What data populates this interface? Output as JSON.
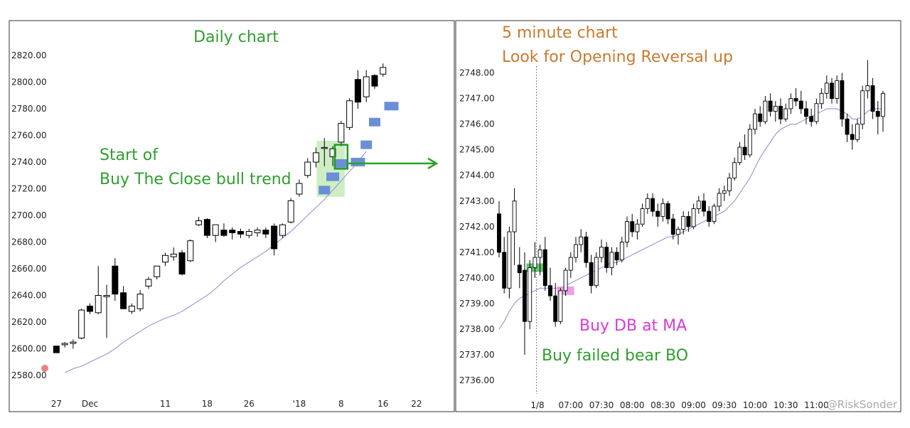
{
  "colors": {
    "annotation_green": "#2e9e2e",
    "annotation_orange": "#c87a2e",
    "annotation_magenta": "#d83ad8",
    "highlight_green": "#cdeec3",
    "highlight_box": "#1f9a1f",
    "marker_blue": "#6a8fd8",
    "marker_green": "#4dbb5a",
    "marker_pink": "#e98ee0",
    "ma_line": "#9b9bd8",
    "arrow": "#2aa02a",
    "red_dot": "#e05a5a"
  },
  "watermark": "@RiskSonder",
  "chart_data": [
    {
      "type": "candlestick",
      "annotations": {
        "title": "Daily chart",
        "line1": "Start of",
        "line2": "Buy The Close bull trend"
      },
      "ylim": [
        2572,
        2830
      ],
      "y_ticks": [
        "2580.00",
        "2600.00",
        "2620.00",
        "2640.00",
        "2660.00",
        "2680.00",
        "2700.00",
        "2720.00",
        "2740.00",
        "2760.00",
        "2780.00",
        "2800.00",
        "2820.00"
      ],
      "y_tick_values": [
        2580,
        2600,
        2620,
        2640,
        2660,
        2680,
        2700,
        2720,
        2740,
        2760,
        2780,
        2800,
        2820
      ],
      "x_ticks": [
        {
          "index": 3,
          "label": "27"
        },
        {
          "index": 7,
          "label": "Dec"
        },
        {
          "index": 16,
          "label": "11"
        },
        {
          "index": 21,
          "label": "18"
        },
        {
          "index": 26,
          "label": "26"
        },
        {
          "index": 32,
          "label": "'18"
        },
        {
          "index": 37,
          "label": "8"
        },
        {
          "index": 42,
          "label": "16"
        },
        {
          "index": 46,
          "label": "22"
        }
      ],
      "candles": [
        {
          "o": 2602,
          "h": 2602,
          "l": 2597,
          "c": 2597
        },
        {
          "o": 2603,
          "h": 2605,
          "l": 2601,
          "c": 2604
        },
        {
          "o": 2604,
          "h": 2607,
          "l": 2600,
          "c": 2605
        },
        {
          "o": 2608,
          "h": 2630,
          "l": 2607,
          "c": 2629
        },
        {
          "o": 2632,
          "h": 2634,
          "l": 2626,
          "c": 2628
        },
        {
          "o": 2627,
          "h": 2662,
          "l": 2626,
          "c": 2640
        },
        {
          "o": 2639,
          "h": 2648,
          "l": 2608,
          "c": 2640
        },
        {
          "o": 2662,
          "h": 2668,
          "l": 2636,
          "c": 2641
        },
        {
          "o": 2642,
          "h": 2647,
          "l": 2630,
          "c": 2630
        },
        {
          "o": 2628,
          "h": 2634,
          "l": 2626,
          "c": 2632
        },
        {
          "o": 2630,
          "h": 2644,
          "l": 2628,
          "c": 2641
        },
        {
          "o": 2647,
          "h": 2654,
          "l": 2645,
          "c": 2652
        },
        {
          "o": 2654,
          "h": 2662,
          "l": 2652,
          "c": 2662
        },
        {
          "o": 2665,
          "h": 2672,
          "l": 2662,
          "c": 2670
        },
        {
          "o": 2669,
          "h": 2676,
          "l": 2666,
          "c": 2671
        },
        {
          "o": 2672,
          "h": 2674,
          "l": 2655,
          "c": 2656
        },
        {
          "o": 2666,
          "h": 2682,
          "l": 2665,
          "c": 2681
        },
        {
          "o": 2693,
          "h": 2699,
          "l": 2692,
          "c": 2696
        },
        {
          "o": 2697,
          "h": 2698,
          "l": 2683,
          "c": 2685
        },
        {
          "o": 2685,
          "h": 2693,
          "l": 2680,
          "c": 2693
        },
        {
          "o": 2689,
          "h": 2694,
          "l": 2684,
          "c": 2685
        },
        {
          "o": 2689,
          "h": 2691,
          "l": 2682,
          "c": 2687
        },
        {
          "o": 2688,
          "h": 2690,
          "l": 2683,
          "c": 2686
        },
        {
          "o": 2685,
          "h": 2690,
          "l": 2683,
          "c": 2688
        },
        {
          "o": 2687,
          "h": 2691,
          "l": 2684,
          "c": 2689
        },
        {
          "o": 2689,
          "h": 2691,
          "l": 2683,
          "c": 2686
        },
        {
          "o": 2692,
          "h": 2694,
          "l": 2670,
          "c": 2675
        },
        {
          "o": 2685,
          "h": 2694,
          "l": 2683,
          "c": 2693
        },
        {
          "o": 2695,
          "h": 2713,
          "l": 2694,
          "c": 2711
        },
        {
          "o": 2716,
          "h": 2727,
          "l": 2714,
          "c": 2724
        },
        {
          "o": 2730,
          "h": 2743,
          "l": 2728,
          "c": 2740
        },
        {
          "o": 2740,
          "h": 2751,
          "l": 2736,
          "c": 2747
        },
        {
          "o": 2751,
          "h": 2758,
          "l": 2737,
          "c": 2751
        },
        {
          "o": 2744,
          "h": 2752,
          "l": 2737,
          "c": 2750
        },
        {
          "o": 2755,
          "h": 2771,
          "l": 2752,
          "c": 2769
        },
        {
          "o": 2766,
          "h": 2788,
          "l": 2764,
          "c": 2786
        },
        {
          "o": 2802,
          "h": 2809,
          "l": 2780,
          "c": 2785
        },
        {
          "o": 2789,
          "h": 2809,
          "l": 2785,
          "c": 2804
        },
        {
          "o": 2805,
          "h": 2806,
          "l": 2795,
          "c": 2797
        },
        {
          "o": 2806,
          "h": 2814,
          "l": 2804,
          "c": 2811
        }
      ],
      "candle_index_offset": 3,
      "ma": [
        2582,
        2585,
        2587,
        2590,
        2593,
        2596,
        2600,
        2605,
        2609,
        2613,
        2617,
        2620,
        2623,
        2625,
        2628,
        2632,
        2636,
        2640,
        2645,
        2651,
        2656,
        2661,
        2665,
        2669,
        2673,
        2678,
        2683,
        2688,
        2694,
        2700,
        2706,
        2712,
        2719,
        2726,
        2733,
        2740,
        2748
      ],
      "ma_index_offset": 4,
      "markers": [
        {
          "index": 35,
          "y": 2719,
          "size": "s"
        },
        {
          "index": 36,
          "y": 2729,
          "size": "m"
        },
        {
          "index": 37,
          "y": 2739,
          "size": "m"
        },
        {
          "index": 39,
          "y": 2740,
          "size": "l"
        },
        {
          "index": 40,
          "y": 2753,
          "size": "s"
        },
        {
          "index": 41,
          "y": 2770,
          "size": "s"
        },
        {
          "index": 43,
          "y": 2782,
          "size": "l"
        }
      ],
      "highlight": {
        "x_from": 34,
        "x_to": 37,
        "y_from": 2714,
        "y_to": 2756
      },
      "box": {
        "index": 37,
        "y_from": 2735,
        "y_to": 2753
      },
      "arrow": {
        "y": 2739
      }
    },
    {
      "type": "candlestick",
      "annotations": {
        "title_line1": "5 minute chart",
        "title_line2": "Look for Opening Reversal up",
        "label_db": "Buy DB at MA",
        "label_bo": "Buy failed bear BO"
      },
      "ylim": [
        2735.5,
        2748.75
      ],
      "y_ticks": [
        "2737.00",
        "2738.00",
        "2739.00",
        "2740.00",
        "2741.00",
        "2742.00",
        "2743.00",
        "2744.00",
        "2745.00",
        "2746.00",
        "2747.00",
        "2748.00"
      ],
      "y_tick_values": [
        2737,
        2738,
        2739,
        2740,
        2741,
        2742,
        2743,
        2744,
        2745,
        2746,
        2747,
        2748
      ],
      "y_tick_partial": "2736.00",
      "y_tick_partial_value": 2736,
      "x_ticks": [
        {
          "index": 7.5,
          "label": "1/8"
        },
        {
          "index": 14,
          "label": "07:00"
        },
        {
          "index": 20,
          "label": "07:30"
        },
        {
          "index": 26,
          "label": "08:00"
        },
        {
          "index": 32,
          "label": "08:30"
        },
        {
          "index": 38,
          "label": "09:00"
        },
        {
          "index": 44,
          "label": "09:30"
        },
        {
          "index": 50,
          "label": "10:00"
        },
        {
          "index": 56,
          "label": "10:30"
        },
        {
          "index": 62,
          "label": "11:00"
        }
      ],
      "opening_index": 8,
      "candles": [
        {
          "o": 2742.5,
          "h": 2743.0,
          "l": 2740.8,
          "c": 2741.0
        },
        {
          "o": 2741.0,
          "h": 2741.6,
          "l": 2739.4,
          "c": 2739.6
        },
        {
          "o": 2739.6,
          "h": 2742.0,
          "l": 2739.2,
          "c": 2741.8
        },
        {
          "o": 2741.8,
          "h": 2743.5,
          "l": 2740.5,
          "c": 2743.0
        },
        {
          "o": 2740.5,
          "h": 2741.2,
          "l": 2739.6,
          "c": 2740.2
        },
        {
          "o": 2740.3,
          "h": 2741.0,
          "l": 2737.0,
          "c": 2738.3
        },
        {
          "o": 2738.3,
          "h": 2740.7,
          "l": 2738.0,
          "c": 2740.4
        },
        {
          "o": 2740.4,
          "h": 2741.4,
          "l": 2740.0,
          "c": 2740.8
        },
        {
          "o": 2740.8,
          "h": 2741.3,
          "l": 2740.1,
          "c": 2741.1
        },
        {
          "o": 2741.1,
          "h": 2741.6,
          "l": 2739.5,
          "c": 2739.7
        },
        {
          "o": 2739.7,
          "h": 2740.4,
          "l": 2739.1,
          "c": 2739.3
        },
        {
          "o": 2739.3,
          "h": 2739.8,
          "l": 2738.1,
          "c": 2738.3
        },
        {
          "o": 2738.3,
          "h": 2739.6,
          "l": 2738.2,
          "c": 2739.5
        },
        {
          "o": 2739.5,
          "h": 2740.4,
          "l": 2739.3,
          "c": 2740.3
        },
        {
          "o": 2740.3,
          "h": 2741.0,
          "l": 2740.0,
          "c": 2740.8
        },
        {
          "o": 2740.8,
          "h": 2741.6,
          "l": 2740.6,
          "c": 2741.3
        },
        {
          "o": 2741.3,
          "h": 2741.9,
          "l": 2741.0,
          "c": 2741.6
        },
        {
          "o": 2741.6,
          "h": 2741.8,
          "l": 2740.4,
          "c": 2740.6
        },
        {
          "o": 2740.6,
          "h": 2740.9,
          "l": 2739.4,
          "c": 2739.7
        },
        {
          "o": 2739.7,
          "h": 2741.0,
          "l": 2739.6,
          "c": 2740.8
        },
        {
          "o": 2740.8,
          "h": 2741.5,
          "l": 2740.6,
          "c": 2741.2
        },
        {
          "o": 2741.2,
          "h": 2741.4,
          "l": 2740.2,
          "c": 2740.4
        },
        {
          "o": 2740.4,
          "h": 2741.2,
          "l": 2740.1,
          "c": 2741.0
        },
        {
          "o": 2741.0,
          "h": 2741.2,
          "l": 2740.5,
          "c": 2740.7
        },
        {
          "o": 2740.7,
          "h": 2741.6,
          "l": 2740.6,
          "c": 2741.4
        },
        {
          "o": 2741.4,
          "h": 2742.4,
          "l": 2741.2,
          "c": 2742.2
        },
        {
          "o": 2742.2,
          "h": 2742.5,
          "l": 2741.6,
          "c": 2741.8
        },
        {
          "o": 2741.8,
          "h": 2742.3,
          "l": 2741.5,
          "c": 2742.1
        },
        {
          "o": 2742.1,
          "h": 2742.9,
          "l": 2742.0,
          "c": 2742.7
        },
        {
          "o": 2742.7,
          "h": 2743.3,
          "l": 2742.5,
          "c": 2743.1
        },
        {
          "o": 2743.1,
          "h": 2743.3,
          "l": 2742.4,
          "c": 2742.6
        },
        {
          "o": 2742.6,
          "h": 2742.9,
          "l": 2742.0,
          "c": 2742.4
        },
        {
          "o": 2742.4,
          "h": 2743.1,
          "l": 2742.2,
          "c": 2742.9
        },
        {
          "o": 2742.9,
          "h": 2743.0,
          "l": 2742.1,
          "c": 2742.3
        },
        {
          "o": 2742.3,
          "h": 2742.5,
          "l": 2741.5,
          "c": 2741.7
        },
        {
          "o": 2741.7,
          "h": 2742.0,
          "l": 2741.3,
          "c": 2741.9
        },
        {
          "o": 2741.9,
          "h": 2742.6,
          "l": 2741.7,
          "c": 2742.4
        },
        {
          "o": 2742.4,
          "h": 2742.6,
          "l": 2741.8,
          "c": 2742.0
        },
        {
          "o": 2742.0,
          "h": 2742.9,
          "l": 2741.9,
          "c": 2742.7
        },
        {
          "o": 2742.7,
          "h": 2743.2,
          "l": 2742.5,
          "c": 2743.0
        },
        {
          "o": 2743.0,
          "h": 2743.3,
          "l": 2742.4,
          "c": 2742.6
        },
        {
          "o": 2742.6,
          "h": 2742.8,
          "l": 2742.0,
          "c": 2742.2
        },
        {
          "o": 2742.2,
          "h": 2742.9,
          "l": 2742.1,
          "c": 2742.8
        },
        {
          "o": 2742.8,
          "h": 2743.5,
          "l": 2742.6,
          "c": 2743.3
        },
        {
          "o": 2743.3,
          "h": 2743.6,
          "l": 2743.0,
          "c": 2743.4
        },
        {
          "o": 2743.4,
          "h": 2744.1,
          "l": 2743.2,
          "c": 2743.9
        },
        {
          "o": 2743.9,
          "h": 2744.7,
          "l": 2743.8,
          "c": 2744.5
        },
        {
          "o": 2744.5,
          "h": 2745.3,
          "l": 2744.4,
          "c": 2745.1
        },
        {
          "o": 2745.1,
          "h": 2745.6,
          "l": 2744.6,
          "c": 2744.8
        },
        {
          "o": 2744.8,
          "h": 2746.0,
          "l": 2744.7,
          "c": 2745.8
        },
        {
          "o": 2745.8,
          "h": 2746.6,
          "l": 2745.6,
          "c": 2746.4
        },
        {
          "o": 2746.4,
          "h": 2746.7,
          "l": 2745.9,
          "c": 2746.1
        },
        {
          "o": 2746.1,
          "h": 2747.1,
          "l": 2746.0,
          "c": 2746.9
        },
        {
          "o": 2746.9,
          "h": 2747.2,
          "l": 2746.3,
          "c": 2746.5
        },
        {
          "o": 2746.5,
          "h": 2746.9,
          "l": 2746.1,
          "c": 2746.7
        },
        {
          "o": 2746.7,
          "h": 2747.0,
          "l": 2746.0,
          "c": 2746.2
        },
        {
          "o": 2746.2,
          "h": 2746.8,
          "l": 2746.1,
          "c": 2746.6
        },
        {
          "o": 2746.6,
          "h": 2747.2,
          "l": 2746.4,
          "c": 2747.0
        },
        {
          "o": 2747.0,
          "h": 2747.4,
          "l": 2746.7,
          "c": 2746.9
        },
        {
          "o": 2746.9,
          "h": 2747.3,
          "l": 2746.4,
          "c": 2746.6
        },
        {
          "o": 2746.6,
          "h": 2746.9,
          "l": 2746.0,
          "c": 2746.3
        },
        {
          "o": 2746.3,
          "h": 2746.6,
          "l": 2745.9,
          "c": 2746.1
        },
        {
          "o": 2746.1,
          "h": 2747.0,
          "l": 2746.0,
          "c": 2746.8
        },
        {
          "o": 2746.8,
          "h": 2747.4,
          "l": 2746.6,
          "c": 2747.2
        },
        {
          "o": 2747.2,
          "h": 2747.9,
          "l": 2747.0,
          "c": 2747.6
        },
        {
          "o": 2747.6,
          "h": 2747.8,
          "l": 2746.8,
          "c": 2747.0
        },
        {
          "o": 2747.0,
          "h": 2747.9,
          "l": 2746.8,
          "c": 2747.7
        },
        {
          "o": 2747.7,
          "h": 2748.0,
          "l": 2745.9,
          "c": 2746.2
        },
        {
          "o": 2746.2,
          "h": 2746.4,
          "l": 2745.3,
          "c": 2745.6
        },
        {
          "o": 2745.6,
          "h": 2746.0,
          "l": 2745.0,
          "c": 2745.4
        },
        {
          "o": 2745.4,
          "h": 2746.2,
          "l": 2745.3,
          "c": 2746.0
        },
        {
          "o": 2746.0,
          "h": 2747.5,
          "l": 2745.8,
          "c": 2747.3
        },
        {
          "o": 2747.3,
          "h": 2748.5,
          "l": 2747.0,
          "c": 2747.5
        },
        {
          "o": 2747.5,
          "h": 2747.8,
          "l": 2746.2,
          "c": 2746.5
        },
        {
          "o": 2746.5,
          "h": 2746.9,
          "l": 2745.6,
          "c": 2746.3
        },
        {
          "o": 2746.3,
          "h": 2747.3,
          "l": 2745.7,
          "c": 2747.2
        }
      ],
      "ma": [
        2738.0,
        2738.3,
        2738.7,
        2739.0,
        2739.2,
        2739.3,
        2739.4,
        2739.5,
        2739.6,
        2739.6,
        2739.6,
        2739.6,
        2739.6,
        2739.7,
        2739.8,
        2739.9,
        2740.0,
        2740.1,
        2740.2,
        2740.3,
        2740.4,
        2740.5,
        2740.6,
        2740.6,
        2740.7,
        2740.8,
        2740.9,
        2741.0,
        2741.1,
        2741.2,
        2741.3,
        2741.4,
        2741.5,
        2741.6,
        2741.6,
        2741.7,
        2741.8,
        2741.9,
        2742.0,
        2742.1,
        2742.2,
        2742.3,
        2742.4,
        2742.5,
        2742.6,
        2742.8,
        2743.0,
        2743.3,
        2743.6,
        2743.9,
        2744.3,
        2744.7,
        2745.0,
        2745.3,
        2745.6,
        2745.8,
        2745.9,
        2746.0,
        2746.0,
        2746.1,
        2746.2,
        2746.3,
        2746.4,
        2746.5,
        2746.6,
        2746.6,
        2746.6,
        2746.5,
        2746.4,
        2746.2,
        2746.2,
        2746.3,
        2746.5,
        2746.6,
        2746.6,
        2746.6
      ],
      "markers": [
        {
          "index": 7,
          "y": 2740.4,
          "color": "green"
        },
        {
          "index": 13,
          "y": 2739.5,
          "color": "pink"
        }
      ]
    }
  ]
}
